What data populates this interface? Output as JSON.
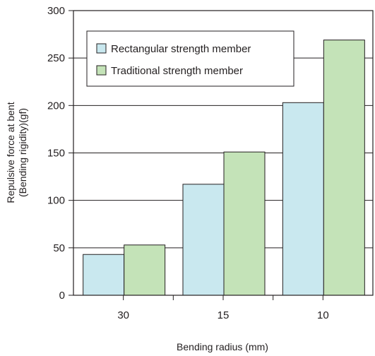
{
  "chart_data": {
    "type": "bar",
    "categories": [
      "30",
      "15",
      "10"
    ],
    "series": [
      {
        "name": "Rectangular strength member",
        "values": [
          43,
          117,
          203
        ],
        "color": "#c9e8ef"
      },
      {
        "name": "Traditional strength member",
        "values": [
          53,
          151,
          269
        ],
        "color": "#c4e3b8"
      }
    ],
    "xlabel": "Bending radius (mm)",
    "ylabel_lines": [
      "Repulsive force at bent",
      "(Bending rigidity)(gf)"
    ],
    "ylim": [
      0,
      300
    ],
    "yticks": [
      "0",
      "50",
      "100",
      "150",
      "200",
      "250",
      "300"
    ],
    "grid": true,
    "legend_position": "top-left",
    "bar_stroke_color": "#231f20"
  }
}
